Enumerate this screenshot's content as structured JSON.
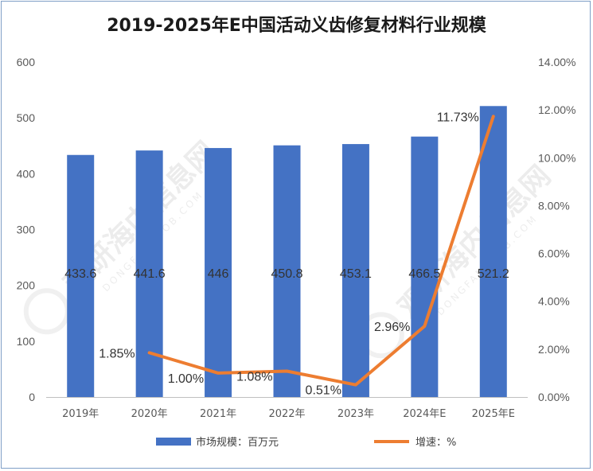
{
  "chart_data": {
    "type": "bar",
    "title": "2019-2025年E中国活动义齿修复材料行业规模",
    "categories": [
      "2019年",
      "2020年",
      "2021年",
      "2022年",
      "2023年",
      "2024年E",
      "2025年E"
    ],
    "series": [
      {
        "name": "市场规模：百万元",
        "type": "bar",
        "axis": "left",
        "color": "#4472C4",
        "values": [
          433.6,
          441.6,
          446,
          450.8,
          453.1,
          466.5,
          521.2
        ],
        "labels": [
          "433.6",
          "441.6",
          "446",
          "450.8",
          "453.1",
          "466.5",
          "521.2"
        ]
      },
      {
        "name": "增速：%",
        "type": "line",
        "axis": "right",
        "color": "#ED7D31",
        "values": [
          null,
          1.85,
          1.0,
          1.08,
          0.51,
          2.96,
          11.73
        ],
        "labels": [
          "",
          "1.85%",
          "1.00%",
          "1.08%",
          "0.51%",
          "2.96%",
          "11.73%"
        ]
      }
    ],
    "y_left": {
      "min": 0,
      "max": 600,
      "ticks": [
        "0",
        "100",
        "200",
        "300",
        "400",
        "500",
        "600"
      ]
    },
    "y_right": {
      "min": 0,
      "max": 14,
      "ticks": [
        "0.00%",
        "2.00%",
        "4.00%",
        "6.00%",
        "8.00%",
        "10.00%",
        "12.00%",
        "14.00%"
      ]
    },
    "grid": false,
    "legend_position": "bottom"
  },
  "watermark": {
    "text": "观研海内信息网",
    "subtext": "DONGFANGGOB.COM"
  }
}
